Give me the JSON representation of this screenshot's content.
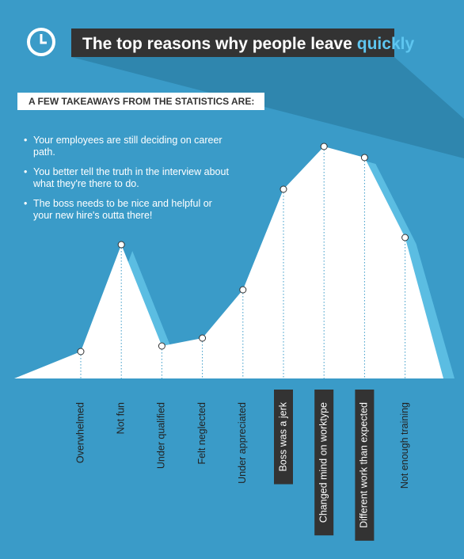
{
  "chart_data": {
    "type": "area",
    "title": "The top reasons why people leave",
    "title_highlight": "quickly",
    "subtitle": "A FEW TAKEAWAYS FROM THE STATISTICS ARE:",
    "notes": [
      "Your employees are still deciding on career path.",
      "You better tell the truth in the interview about what they're there to do.",
      "The boss needs to be nice and helpful or your new hire's outta there!"
    ],
    "categories": [
      "Overwhelmed",
      "Not fun",
      "Under qualified",
      "Felt neglected",
      "Under appreciated",
      "Boss was a jerk",
      "Changed mind on worktype",
      "Different work than expected",
      "Not enough training"
    ],
    "values": [
      34,
      169,
      41,
      51,
      112,
      239,
      293,
      279,
      178
    ],
    "highlighted": [
      false,
      false,
      false,
      false,
      false,
      true,
      true,
      true,
      false
    ],
    "color": "#ffffff",
    "shadow_color": "#5bbde2",
    "ylim": [
      0,
      300
    ]
  }
}
